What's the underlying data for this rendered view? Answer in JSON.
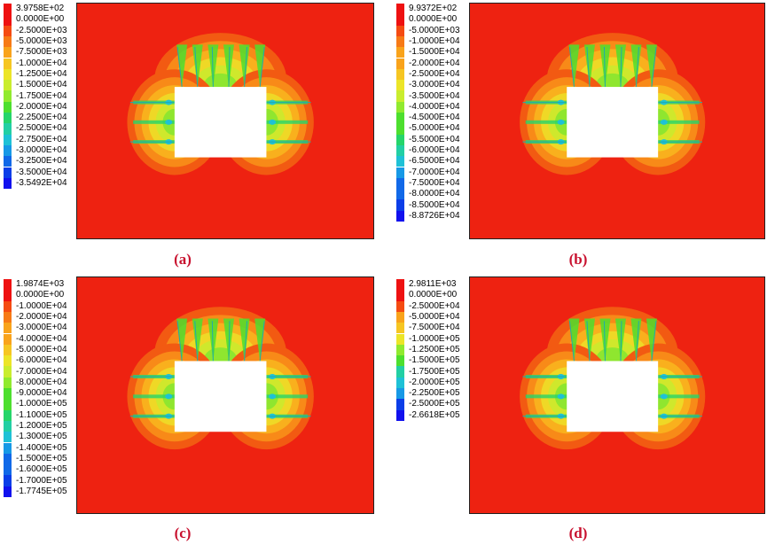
{
  "colors": {
    "background_field": "#ee2211",
    "scale": [
      "#ee1111",
      "#f54b12",
      "#f77a16",
      "#f9a31b",
      "#f6c622",
      "#ece528",
      "#c9ed2e",
      "#90ea2f",
      "#4ddf2e",
      "#25d56a",
      "#22cfa4",
      "#1ec1d6",
      "#1799e6",
      "#1169e8",
      "#0b3ee8",
      "#1111ee"
    ]
  },
  "panels": [
    {
      "id": "a",
      "caption": "(a)",
      "legend": [
        "3.9758E+02",
        "0.0000E+00",
        "-2.5000E+03",
        "-5.0000E+03",
        "-7.5000E+03",
        "-1.0000E+04",
        "-1.2500E+04",
        "-1.5000E+04",
        "-1.7500E+04",
        "-2.0000E+04",
        "-2.2500E+04",
        "-2.5000E+04",
        "-2.7500E+04",
        "-3.0000E+04",
        "-3.2500E+04",
        "-3.5000E+04",
        "-3.5492E+04"
      ]
    },
    {
      "id": "b",
      "caption": "(b)",
      "legend": [
        "9.9372E+02",
        "0.0000E+00",
        "-5.0000E+03",
        "-1.0000E+04",
        "-1.5000E+04",
        "-2.0000E+04",
        "-2.5000E+04",
        "-3.0000E+04",
        "-3.5000E+04",
        "-4.0000E+04",
        "-4.5000E+04",
        "-5.0000E+04",
        "-5.5000E+04",
        "-6.0000E+04",
        "-6.5000E+04",
        "-7.0000E+04",
        "-7.5000E+04",
        "-8.0000E+04",
        "-8.5000E+04",
        "-8.8726E+04"
      ]
    },
    {
      "id": "c",
      "caption": "(c)",
      "legend": [
        "1.9874E+03",
        "0.0000E+00",
        "-1.0000E+04",
        "-2.0000E+04",
        "-3.0000E+04",
        "-4.0000E+04",
        "-5.0000E+04",
        "-6.0000E+04",
        "-7.0000E+04",
        "-8.0000E+04",
        "-9.0000E+04",
        "-1.0000E+05",
        "-1.1000E+05",
        "-1.2000E+05",
        "-1.3000E+05",
        "-1.4000E+05",
        "-1.5000E+05",
        "-1.6000E+05",
        "-1.7000E+05",
        "-1.7745E+05"
      ]
    },
    {
      "id": "d",
      "caption": "(d)",
      "legend": [
        "2.9811E+03",
        "0.0000E+00",
        "-2.5000E+04",
        "-5.0000E+04",
        "-7.5000E+04",
        "-1.0000E+05",
        "-1.2500E+05",
        "-1.5000E+05",
        "-1.7500E+05",
        "-2.0000E+05",
        "-2.2500E+05",
        "-2.5000E+05",
        "-2.6618E+05"
      ]
    }
  ]
}
